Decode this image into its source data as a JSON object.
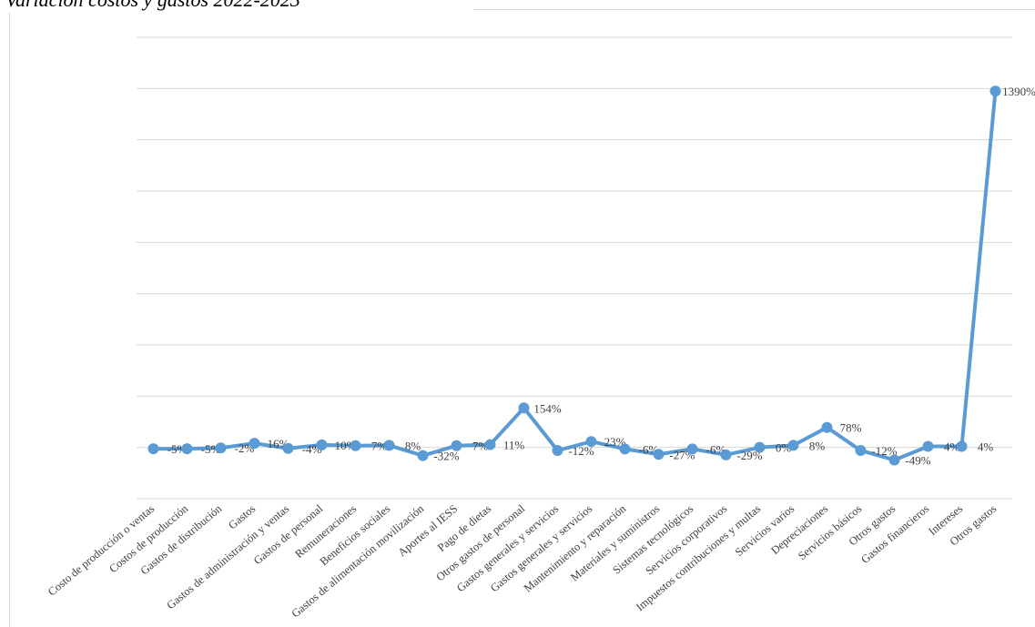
{
  "chart_data": {
    "type": "line",
    "title": "Variación costos y gastos 2022-2023",
    "categories": [
      "Costo de producción o ventas",
      "Costos de producción",
      "Gastos de distribución",
      "Gastos",
      "Gastos de administración y ventas",
      "Gastos de personal",
      "Remuneraciones",
      "Beneficios sociales",
      "Gastos de alimentación movilización",
      "Aportes al IESS",
      "Pago de dietas",
      "Otros gastos de personal",
      "Gastos generales y servicios",
      "Gastos generales y servicios",
      "Mantenimiento y reparación",
      "Materiales y suministros",
      "Sistemas tecnológicos",
      "Servicios corporativos",
      "Impuestos contribuciones y multas",
      "Servicios varios",
      "Depreciaciones",
      "Servicios básicos",
      "Otros gastos",
      "Gastos financieros",
      "Intereses",
      "Otros gastos"
    ],
    "values": [
      -5,
      -5,
      -2,
      16,
      -4,
      10,
      7,
      8,
      -32,
      7,
      11,
      154,
      -12,
      23,
      -6,
      -27,
      -6,
      -29,
      0,
      8,
      78,
      -12,
      -49,
      4,
      4,
      1390
    ],
    "value_labels": [
      "-5%",
      "-5%",
      "-2%",
      "16%",
      "-4%",
      "10%",
      "7%",
      "8%",
      "-32%",
      "7%",
      "11%",
      "154%",
      "-12%",
      "23%",
      "-6%",
      "-27%",
      "-6%",
      "-29%",
      "0%",
      "8%",
      "78%",
      "-12%",
      "-49%",
      "4%",
      "4%",
      "1390%"
    ],
    "color": "#5b9bd5",
    "ylim": [
      -200,
      1600
    ],
    "yticks": [
      -200,
      0,
      200,
      400,
      600,
      800,
      1000,
      1200,
      1400,
      1600
    ],
    "grid": true
  }
}
